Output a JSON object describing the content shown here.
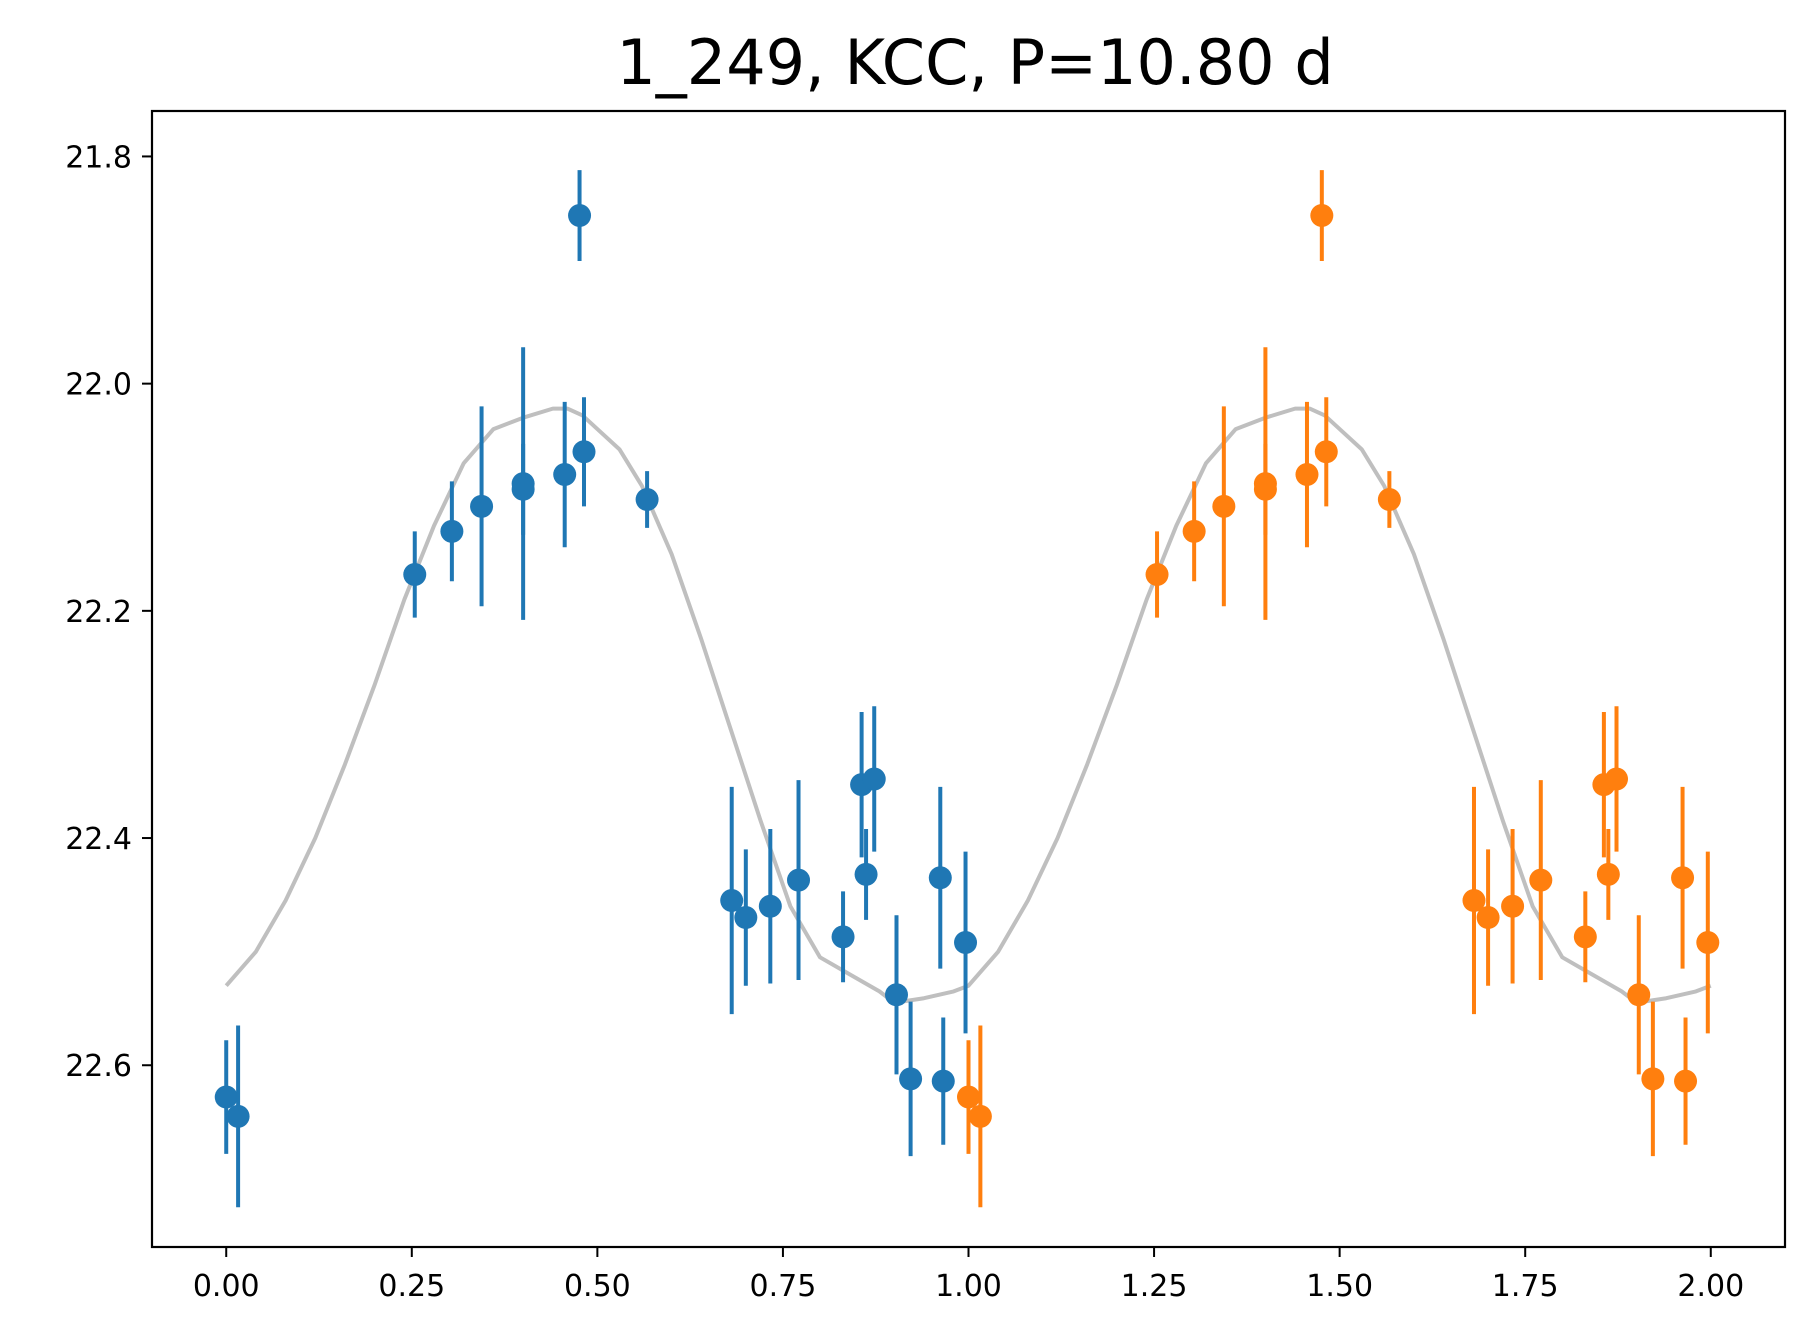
{
  "chart_data": {
    "type": "scatter",
    "title": "1_249, KCC, P=10.80 d",
    "xlabel": "",
    "ylabel": "",
    "xlim": [
      -0.1,
      2.1
    ],
    "ylim": [
      22.76,
      21.76
    ],
    "y_inverted": true,
    "grid": false,
    "x_ticks": [
      {
        "value": 0.0,
        "label": "0.00"
      },
      {
        "value": 0.25,
        "label": "0.25"
      },
      {
        "value": 0.5,
        "label": "0.50"
      },
      {
        "value": 0.75,
        "label": "0.75"
      },
      {
        "value": 1.0,
        "label": "1.00"
      },
      {
        "value": 1.25,
        "label": "1.25"
      },
      {
        "value": 1.5,
        "label": "1.50"
      },
      {
        "value": 1.75,
        "label": "1.75"
      },
      {
        "value": 2.0,
        "label": "2.00"
      }
    ],
    "y_ticks": [
      {
        "value": 21.8,
        "label": "21.8"
      },
      {
        "value": 22.0,
        "label": "22.0"
      },
      {
        "value": 22.2,
        "label": "22.2"
      },
      {
        "value": 22.4,
        "label": "22.4"
      },
      {
        "value": 22.6,
        "label": "22.6"
      }
    ],
    "series": [
      {
        "color": "#1f77b4",
        "points": [
          {
            "x": 0.0,
            "y": 22.628,
            "err": 0.05
          },
          {
            "x": 0.016,
            "y": 22.645,
            "err": 0.08
          },
          {
            "x": 0.254,
            "y": 22.168,
            "err": 0.038
          },
          {
            "x": 0.304,
            "y": 22.13,
            "err": 0.044
          },
          {
            "x": 0.344,
            "y": 22.108,
            "err": 0.088
          },
          {
            "x": 0.4,
            "y": 22.088,
            "err": 0.12
          },
          {
            "x": 0.4,
            "y": 22.093,
            "err": 0.04
          },
          {
            "x": 0.456,
            "y": 22.08,
            "err": 0.064
          },
          {
            "x": 0.476,
            "y": 21.852,
            "err": 0.04
          },
          {
            "x": 0.482,
            "y": 22.06,
            "err": 0.048
          },
          {
            "x": 0.567,
            "y": 22.102,
            "err": 0.025
          },
          {
            "x": 0.681,
            "y": 22.455,
            "err": 0.1
          },
          {
            "x": 0.7,
            "y": 22.47,
            "err": 0.06
          },
          {
            "x": 0.733,
            "y": 22.46,
            "err": 0.068
          },
          {
            "x": 0.771,
            "y": 22.437,
            "err": 0.088
          },
          {
            "x": 0.831,
            "y": 22.487,
            "err": 0.04
          },
          {
            "x": 0.856,
            "y": 22.353,
            "err": 0.064
          },
          {
            "x": 0.862,
            "y": 22.432,
            "err": 0.04
          },
          {
            "x": 0.873,
            "y": 22.348,
            "err": 0.064
          },
          {
            "x": 0.903,
            "y": 22.538,
            "err": 0.07
          },
          {
            "x": 0.922,
            "y": 22.612,
            "err": 0.068
          },
          {
            "x": 0.962,
            "y": 22.435,
            "err": 0.08
          },
          {
            "x": 0.966,
            "y": 22.614,
            "err": 0.056
          },
          {
            "x": 0.996,
            "y": 22.492,
            "err": 0.08
          }
        ]
      },
      {
        "color": "#ff7f0e",
        "points": [
          {
            "x": 1.0,
            "y": 22.628,
            "err": 0.05
          },
          {
            "x": 1.016,
            "y": 22.645,
            "err": 0.08
          },
          {
            "x": 1.254,
            "y": 22.168,
            "err": 0.038
          },
          {
            "x": 1.304,
            "y": 22.13,
            "err": 0.044
          },
          {
            "x": 1.344,
            "y": 22.108,
            "err": 0.088
          },
          {
            "x": 1.4,
            "y": 22.088,
            "err": 0.12
          },
          {
            "x": 1.4,
            "y": 22.093,
            "err": 0.04
          },
          {
            "x": 1.456,
            "y": 22.08,
            "err": 0.064
          },
          {
            "x": 1.476,
            "y": 21.852,
            "err": 0.04
          },
          {
            "x": 1.482,
            "y": 22.06,
            "err": 0.048
          },
          {
            "x": 1.567,
            "y": 22.102,
            "err": 0.025
          },
          {
            "x": 1.681,
            "y": 22.455,
            "err": 0.1
          },
          {
            "x": 1.7,
            "y": 22.47,
            "err": 0.06
          },
          {
            "x": 1.733,
            "y": 22.46,
            "err": 0.068
          },
          {
            "x": 1.771,
            "y": 22.437,
            "err": 0.088
          },
          {
            "x": 1.831,
            "y": 22.487,
            "err": 0.04
          },
          {
            "x": 1.856,
            "y": 22.353,
            "err": 0.064
          },
          {
            "x": 1.862,
            "y": 22.432,
            "err": 0.04
          },
          {
            "x": 1.873,
            "y": 22.348,
            "err": 0.064
          },
          {
            "x": 1.903,
            "y": 22.538,
            "err": 0.07
          },
          {
            "x": 1.922,
            "y": 22.612,
            "err": 0.068
          },
          {
            "x": 1.962,
            "y": 22.435,
            "err": 0.08
          },
          {
            "x": 1.966,
            "y": 22.614,
            "err": 0.056
          },
          {
            "x": 1.996,
            "y": 22.492,
            "err": 0.08
          }
        ]
      }
    ],
    "model_curve": {
      "color": "#bfbfbf",
      "x": [
        0.0,
        0.04,
        0.08,
        0.12,
        0.16,
        0.2,
        0.24,
        0.28,
        0.32,
        0.36,
        0.4,
        0.44,
        0.46,
        0.48,
        0.5,
        0.53,
        0.56,
        0.6,
        0.64,
        0.68,
        0.72,
        0.76,
        0.8,
        0.84,
        0.88,
        0.9,
        0.94,
        0.98,
        1.0,
        1.04,
        1.08,
        1.12,
        1.16,
        1.2,
        1.24,
        1.28,
        1.32,
        1.36,
        1.4,
        1.44,
        1.46,
        1.48,
        1.5,
        1.53,
        1.56,
        1.6,
        1.64,
        1.68,
        1.72,
        1.76,
        1.8,
        1.84,
        1.88,
        1.9,
        1.94,
        1.98,
        2.0
      ],
      "y": [
        22.53,
        22.5,
        22.455,
        22.4,
        22.335,
        22.265,
        22.19,
        22.125,
        22.07,
        22.04,
        22.03,
        22.022,
        22.022,
        22.028,
        22.04,
        22.058,
        22.09,
        22.15,
        22.225,
        22.305,
        22.385,
        22.46,
        22.505,
        22.52,
        22.535,
        22.545,
        22.541,
        22.535,
        22.53,
        22.5,
        22.455,
        22.4,
        22.335,
        22.265,
        22.19,
        22.125,
        22.07,
        22.04,
        22.03,
        22.022,
        22.022,
        22.028,
        22.04,
        22.058,
        22.09,
        22.15,
        22.225,
        22.305,
        22.385,
        22.46,
        22.505,
        22.52,
        22.535,
        22.545,
        22.541,
        22.535,
        22.53
      ]
    }
  }
}
